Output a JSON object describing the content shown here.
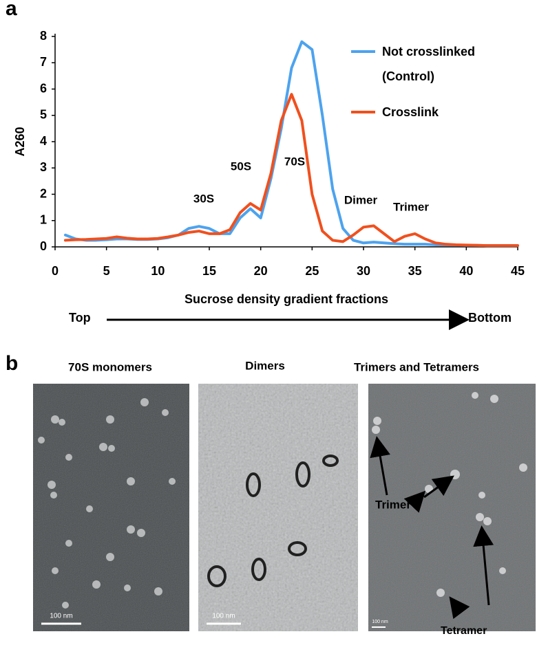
{
  "panel_labels": [
    "a",
    "b"
  ],
  "chart_data": {
    "type": "line",
    "x_label": "Sucrose density gradient fractions",
    "y_label": "A260",
    "x": [
      1,
      2,
      3,
      4,
      5,
      6,
      7,
      8,
      9,
      10,
      11,
      12,
      13,
      14,
      15,
      16,
      17,
      18,
      19,
      20,
      21,
      22,
      23,
      24,
      25,
      26,
      27,
      28,
      29,
      30,
      31,
      32,
      33,
      34,
      35,
      36,
      37,
      38,
      39,
      40,
      41,
      42,
      43,
      44,
      45
    ],
    "series": [
      {
        "name": "Not crosslinked (Control)",
        "color": "#4da3ee",
        "values": [
          0.45,
          0.3,
          0.25,
          0.25,
          0.27,
          0.3,
          0.3,
          0.28,
          0.28,
          0.3,
          0.35,
          0.45,
          0.7,
          0.78,
          0.7,
          0.5,
          0.5,
          1.1,
          1.45,
          1.1,
          2.6,
          4.5,
          6.8,
          7.8,
          7.5,
          5.0,
          2.2,
          0.7,
          0.25,
          0.15,
          0.18,
          0.15,
          0.12,
          0.1,
          0.1,
          0.1,
          0.08,
          0.08,
          0.07,
          0.06,
          0.06,
          0.05,
          0.05,
          0.05,
          0.05
        ]
      },
      {
        "name": "Crosslink",
        "color": "#f0501e",
        "values": [
          0.25,
          0.27,
          0.28,
          0.3,
          0.32,
          0.38,
          0.33,
          0.3,
          0.3,
          0.32,
          0.38,
          0.45,
          0.55,
          0.6,
          0.5,
          0.5,
          0.65,
          1.3,
          1.65,
          1.4,
          2.8,
          4.8,
          5.8,
          4.8,
          2.0,
          0.6,
          0.25,
          0.2,
          0.45,
          0.75,
          0.8,
          0.5,
          0.2,
          0.4,
          0.5,
          0.3,
          0.15,
          0.1,
          0.08,
          0.07,
          0.06,
          0.05,
          0.05,
          0.05,
          0.05
        ]
      }
    ],
    "xlim": [
      0,
      45
    ],
    "xticks": [
      0,
      5,
      10,
      15,
      20,
      25,
      30,
      35,
      40,
      45
    ],
    "ylim": [
      0,
      8
    ],
    "yticks": [
      0,
      1,
      2,
      3,
      4,
      5,
      6,
      7,
      8
    ],
    "annotations": [
      "30S",
      "50S",
      "70S",
      "Dimer",
      "Trimer"
    ],
    "direction": [
      "Top",
      "Bottom"
    ]
  },
  "panel_b": {
    "titles": [
      "70S monomers",
      "Dimers",
      "Trimers and Tetramers"
    ],
    "scale_bar": "100 nm",
    "labels": [
      "Trimer",
      "Tetramer"
    ]
  }
}
